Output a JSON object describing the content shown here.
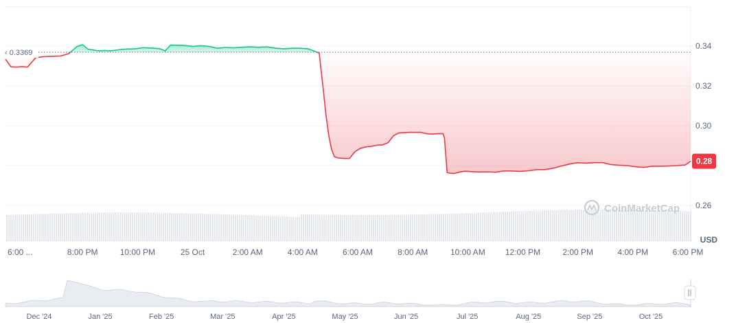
{
  "chart_data": {
    "type": "line",
    "title": "",
    "xlabel": "",
    "ylabel": "",
    "y_unit": "USD",
    "ylim": [
      0.25,
      0.355
    ],
    "y_ticks": [
      0.34,
      0.32,
      0.3,
      0.28,
      0.26
    ],
    "y_tick_labels": [
      "0.34",
      "0.32",
      "0.30",
      "0.28",
      "0.26"
    ],
    "x_tick_labels": [
      "6:00 ...",
      "8:00 PM",
      "10:00 PM",
      "25 Oct",
      "2:00 AM",
      "4:00 AM",
      "6:00 AM",
      "8:00 AM",
      "10:00 AM",
      "12:00 PM",
      "2:00 PM",
      "4:00 PM",
      "6:00 PM"
    ],
    "x_tick_hours": [
      0,
      2,
      4,
      6,
      8,
      10,
      12,
      14,
      16,
      18,
      20,
      22,
      24
    ],
    "x_range_hours": [
      -0.8,
      24.1
    ],
    "reference_price": 0.3369,
    "reference_label": "0.3369",
    "current_price": 0.2822,
    "current_label": "0.28",
    "up_color": "#16c784",
    "down_color": "#ea3943",
    "grid": true,
    "series": [
      {
        "x": [
          -0.8,
          -0.6,
          -0.4,
          -0.2,
          0.0,
          0.3,
          0.6,
          0.8,
          1.0,
          1.2,
          1.5,
          1.8,
          2.0,
          2.2,
          2.4,
          2.6,
          2.8,
          3.0,
          3.3,
          3.6,
          3.9,
          4.2,
          4.5,
          4.8,
          5.0,
          5.2,
          5.5,
          5.8,
          6.0,
          6.3,
          6.6,
          6.9,
          7.2,
          7.5,
          7.8,
          8.1,
          8.4,
          8.7,
          9.0,
          9.3,
          9.6,
          9.9,
          10.2,
          10.4,
          10.6,
          10.75,
          10.85,
          10.95,
          11.05,
          11.15,
          11.3,
          11.5,
          11.7,
          11.9,
          12.1,
          12.3,
          12.5,
          12.7,
          12.9,
          13.1,
          13.3,
          13.5,
          13.7,
          13.9,
          14.1,
          14.3,
          14.5,
          14.7,
          14.9,
          15.1,
          15.15,
          15.25,
          15.35,
          15.5,
          15.7,
          15.9,
          16.1,
          16.4,
          16.7,
          17.0,
          17.3,
          17.6,
          17.9,
          18.2,
          18.5,
          18.8,
          19.1,
          19.4,
          19.7,
          20.0,
          20.3,
          20.6,
          20.9,
          21.2,
          21.5,
          21.8,
          22.1,
          22.4,
          22.7,
          23.0,
          23.3,
          23.6,
          23.9,
          24.1
        ],
        "y": [
          0.3334,
          0.3296,
          0.3294,
          0.3297,
          0.3294,
          0.3342,
          0.3347,
          0.3348,
          0.3349,
          0.335,
          0.3362,
          0.3398,
          0.3407,
          0.3384,
          0.338,
          0.3376,
          0.3378,
          0.3376,
          0.3381,
          0.3385,
          0.3386,
          0.3392,
          0.339,
          0.3387,
          0.3376,
          0.3405,
          0.3404,
          0.3402,
          0.3398,
          0.3402,
          0.3398,
          0.3389,
          0.3393,
          0.3391,
          0.3394,
          0.3396,
          0.3394,
          0.3396,
          0.339,
          0.3386,
          0.3389,
          0.3389,
          0.3386,
          0.3376,
          0.3365,
          0.318,
          0.305,
          0.295,
          0.288,
          0.2845,
          0.2838,
          0.2836,
          0.2836,
          0.287,
          0.2887,
          0.2894,
          0.2897,
          0.2902,
          0.2904,
          0.2915,
          0.295,
          0.2964,
          0.2966,
          0.2967,
          0.2967,
          0.2967,
          0.296,
          0.2958,
          0.296,
          0.296,
          0.294,
          0.2765,
          0.2762,
          0.276,
          0.2768,
          0.2772,
          0.277,
          0.2768,
          0.2769,
          0.2767,
          0.2773,
          0.2773,
          0.2771,
          0.2774,
          0.278,
          0.278,
          0.2787,
          0.2798,
          0.2808,
          0.2815,
          0.2812,
          0.2815,
          0.2815,
          0.2805,
          0.2802,
          0.28,
          0.2794,
          0.2791,
          0.2797,
          0.2797,
          0.2798,
          0.28,
          0.2803,
          0.2822
        ]
      }
    ],
    "navigator_x_labels": [
      "Dec '24",
      "Jan '25",
      "Feb '25",
      "Mar '25",
      "Apr '25",
      "May '25",
      "Jun '25",
      "Jul '25",
      "Aug '25",
      "Sep '25",
      "Oct '25"
    ],
    "watermark": "CoinMarketCap"
  }
}
